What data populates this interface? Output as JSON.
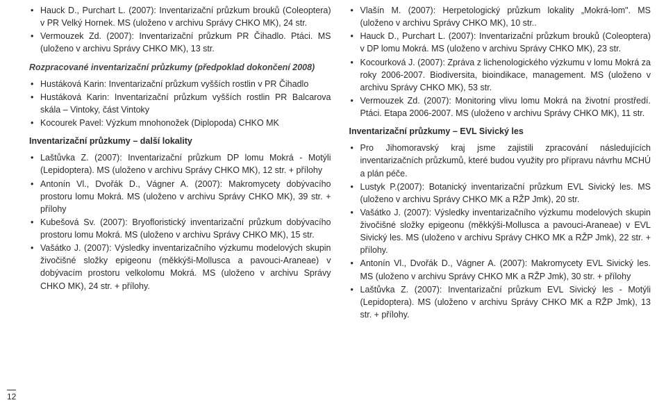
{
  "left": {
    "listA": [
      "Hauck D., Purchart L. (2007): Inventarizační průzkum brouků (Coleoptera) v PR Velký Hornek. MS (uloženo v archivu Správy CHKO MK), 24 str.",
      "Vermouzek Zd. (2007): Inventarizační průzkum PR Čihadlo. Ptáci. MS (uloženo v archivu Správy CHKO MK), 13 str."
    ],
    "headB": "Rozpracované inventarizační průzkumy (předpoklad dokončení 2008)",
    "listB": [
      "Hustáková Karin: Inventarizační průzkum vyšších rostlin v PR Čihadlo",
      "Hustáková Karin: Inventarizační průzkum vyšších rostlin PR Balcarova skála – Vintoky, část Vintoky",
      "Kocourek Pavel: Výzkum mnohonožek (Diplopoda) CHKO MK"
    ],
    "headC": "Inventarizační průzkumy – další lokality",
    "listC": [
      "Laštůvka Z. (2007): Inventarizační průzkum DP lomu Mokrá - Motýli (Lepidoptera). MS (uloženo v archivu Správy CHKO MK), 12 str. + přílohy",
      "Antonín Vl., Dvořák D., Vágner A. (2007): Makromycety dobývacího prostoru lomu Mokrá. MS (uloženo v archivu Správy CHKO MK), 39 str. + přílohy",
      "Kubešová Sv. (2007): Bryofloristický inventarizační průzkum dobývacího prostoru lomu Mokrá. MS (uloženo v archivu Správy CHKO MK), 15 str.",
      "Vašátko J. (2007): Výsledky inventarizačního výzkumu modelových skupin živočišné složky epigeonu (měkkýši-Mollusca a pavouci-Araneae) v dobývacím prostoru velkolomu Mokrá. MS (uloženo v archivu Správy CHKO MK), 24 str. + přílohy."
    ]
  },
  "right": {
    "listA": [
      "Vlašín M. (2007): Herpetologický průzkum lokality „Mokrá-lom\". MS (uloženo v archivu Správy CHKO MK), 10 str..",
      "Hauck D., Purchart L. (2007): Inventarizační průzkum brouků (Coleoptera) v DP lomu Mokrá. MS (uloženo v archivu Správy CHKO MK), 23 str.",
      "Kocourková J. (2007): Zpráva z lichenologického výzkumu v lomu Mokrá za roky 2006-2007. Biodiversita, bioindikace, management. MS (uloženo v archivu Správy CHKO MK), 53 str.",
      "Vermouzek Zd. (2007): Monitoring vlivu lomu Mokrá na životní prostředí. Ptáci. Etapa 2006-2007. MS (uloženo v archivu Správy CHKO MK), 11 str."
    ],
    "headB": "Inventarizační průzkumy – EVL Sivický les",
    "listB": [
      "Pro Jihomoravský kraj jsme zajistili zpracování následujících inventarizačních průzkumů, které budou využity pro přípravu návrhu MCHÚ a plán péče.",
      "Lustyk P.(2007): Botanický inventarizační průzkum EVL Sivický les. MS (uloženo v archivu Správy CHKO MK a RŽP Jmk), 20 str.",
      "Vašátko J. (2007): Výsledky inventarizačního výzkumu modelových skupin živočišné složky epigeonu (měkkýši-Mollusca a pavouci-Araneae) v EVL Sivický les. MS (uloženo v archivu Správy CHKO MK a RŽP Jmk), 22 str. + přílohy.",
      "Antonín Vl., Dvořák D., Vágner A. (2007): Makromycety EVL Sivický les. MS (uloženo v archivu Správy CHKO MK a RŽP Jmk), 30 str. + přílohy",
      "Laštůvka Z. (2007): Inventarizační průzkum EVL Sivický les - Motýli (Lepidoptera). MS (uloženo v archivu Správy CHKO MK a RŽP Jmk), 13 str. + přílohy."
    ]
  },
  "pageNum": "12"
}
